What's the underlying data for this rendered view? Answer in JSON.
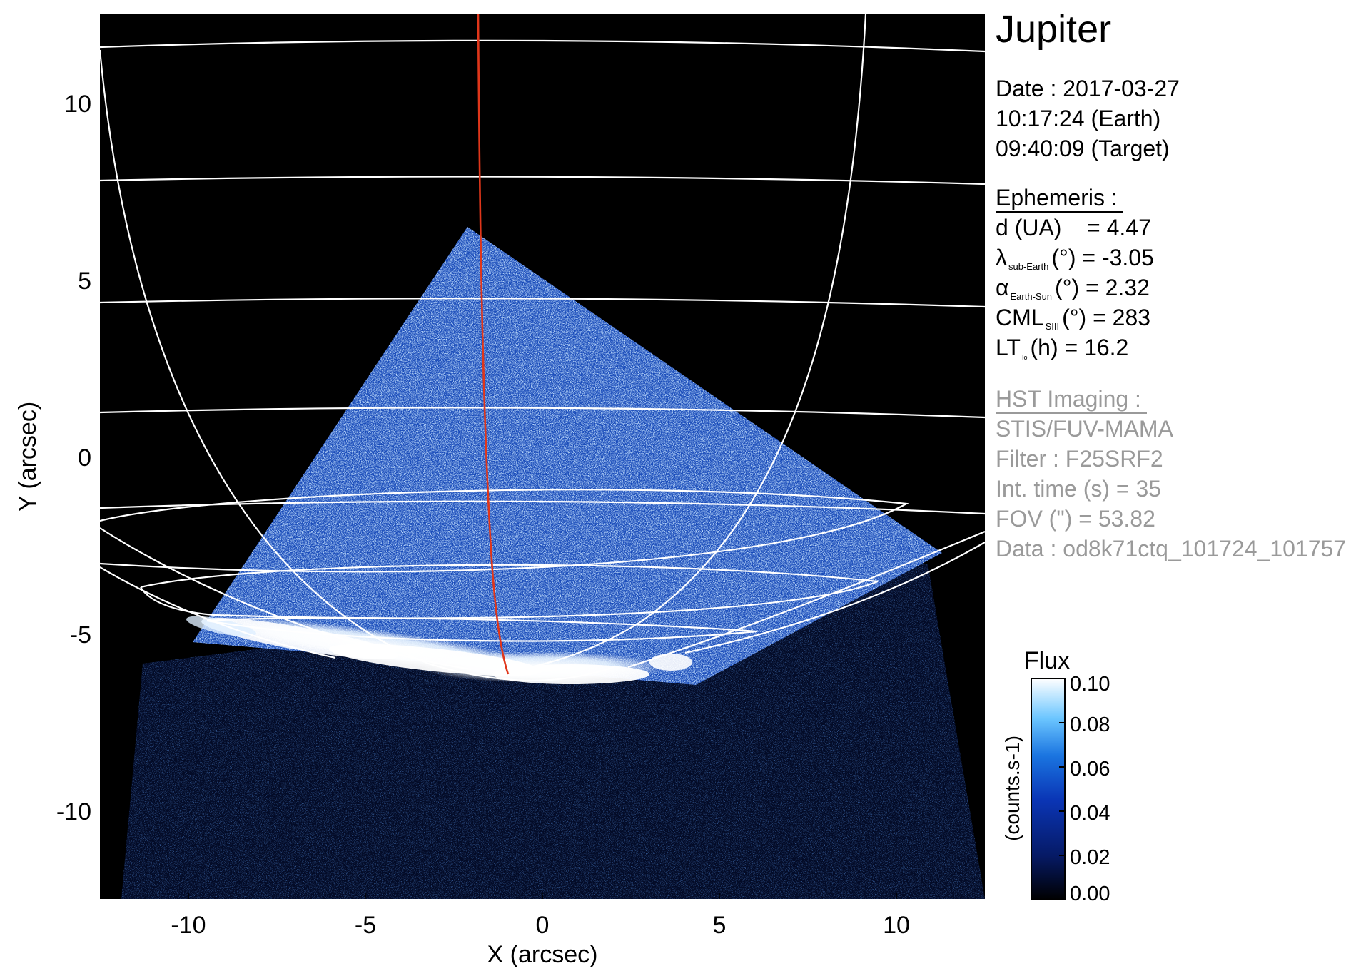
{
  "figure": {
    "title": "Jupiter",
    "date_block": {
      "date": "Date : 2017-03-27",
      "earth_time": "10:17:24 (Earth)",
      "target_time": "09:40:09 (Target)"
    },
    "ephemeris": {
      "heading": "Ephemeris :",
      "d": {
        "label": "d (UA)",
        "value": "= 4.47"
      },
      "lambda": {
        "symbol": "λ",
        "sub": "sub-Earth",
        "unit": "(°)",
        "value": "= -3.05"
      },
      "alpha": {
        "symbol": "α",
        "sub": "Earth-Sun",
        "unit": "(°)",
        "value": "= 2.32"
      },
      "cml": {
        "symbol": "CML",
        "sub": "SIII",
        "unit": "(°)",
        "value": "= 283"
      },
      "lt": {
        "symbol": "LT",
        "sub": "Io",
        "unit": "(h)",
        "value": "= 16.2"
      }
    },
    "hst": {
      "heading": "HST Imaging :",
      "instrument": "STIS/FUV-MAMA",
      "filter": "Filter : F25SRF2",
      "int_time": "Int. time (s) = 35",
      "fov": "FOV (\") = 53.82",
      "data": "Data : od8k71ctq_101724_101757"
    },
    "colors": {
      "background": "#000000",
      "grid": "#ffffff",
      "meridian": "#e0361a",
      "info_gray": "#9a9a9a"
    }
  },
  "chart_data": {
    "type": "heatmap",
    "xlabel": "X (arcsec)",
    "ylabel": "Y (arcsec)",
    "xlim": [
      -12.5,
      12.5
    ],
    "ylim": [
      -12.5,
      12.5
    ],
    "x_ticks": [
      "-10",
      "-5",
      "0",
      "5",
      "10"
    ],
    "y_ticks": [
      "10",
      "5",
      "0",
      "-5",
      "-10"
    ],
    "colorbar": {
      "title": "Flux",
      "units": "(counts.s-1)",
      "range": [
        0.0,
        0.1
      ],
      "ticks": [
        "0.10",
        "0.08",
        "0.06",
        "0.04",
        "0.02",
        "0.00"
      ],
      "colormap": [
        "#000000",
        "#061a66",
        "#0a35b5",
        "#1a74e0",
        "#6cc6ff",
        "#ffffff"
      ]
    }
  }
}
